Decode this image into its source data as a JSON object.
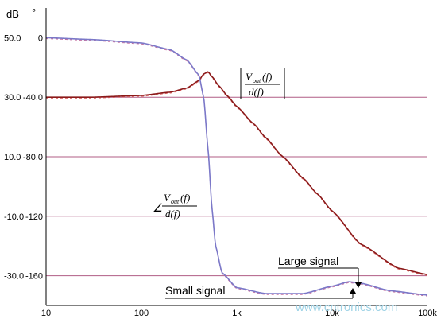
{
  "chart_data": {
    "type": "line",
    "units": {
      "left": "dB",
      "right": "°"
    },
    "x_axis": {
      "scale": "log",
      "ticks": [
        "10",
        "100",
        "1k",
        "10k",
        "100k"
      ],
      "range": [
        10,
        100000
      ]
    },
    "y_axis_db": {
      "ticks": [
        "50.0",
        "30.0",
        "10.0",
        "-10.0",
        "-30.0"
      ],
      "range": [
        -40,
        60
      ]
    },
    "y_axis_phase": {
      "ticks": [
        "0",
        "-40.0",
        "-80.0",
        "-120",
        "-160"
      ],
      "range": [
        -180,
        20
      ]
    },
    "grid": {
      "horizontal_db": [
        30,
        10,
        -10,
        -30
      ],
      "vertical": false
    },
    "series": [
      {
        "color": "#8b1a1a",
        "x": [
          10,
          30,
          100,
          200,
          300,
          400,
          450,
          500,
          550,
          650,
          800,
          1000,
          1500,
          2000,
          3000,
          5000,
          7000,
          10000,
          20000,
          50000,
          100000
        ],
        "y": [
          30,
          30,
          30.6,
          31.7,
          33.1,
          35.6,
          37.8,
          38.6,
          36.9,
          33.8,
          30.4,
          26.9,
          21.1,
          16.5,
          10.2,
          2.7,
          -2.5,
          -8.2,
          -19.4,
          -27.5,
          -29.6
        ]
      },
      {
        "color": "#7b78c8",
        "x": [
          10,
          30,
          100,
          200,
          300,
          400,
          450,
          500,
          550,
          600,
          700,
          1000,
          2000,
          5000,
          10000,
          15000,
          20000,
          40000,
          100000
        ],
        "y": [
          0,
          -1.2,
          -3.5,
          -8,
          -15,
          -25,
          -40,
          -75,
          -115,
          -140,
          -158,
          -168,
          -172,
          -172,
          -167,
          -164,
          -165,
          -170,
          -173
        ]
      }
    ],
    "annotations": [
      {
        "label": "Large signal"
      },
      {
        "label": "Small signal"
      }
    ]
  },
  "math_labels": {
    "magnitude": {
      "numerator": "V",
      "sub": "out",
      "num_arg": "(f)",
      "denominator": "d(f)"
    },
    "phase": {
      "angle": "∠",
      "numerator": "V",
      "sub": "out",
      "num_arg": "(f)",
      "denominator": "d(f)"
    }
  },
  "watermark": "www.cntronics.com",
  "colors": {
    "axis": "#000000",
    "grid": "#b05d85",
    "magnitude_curve": "#8b1a1a",
    "phase_curve": "#7b78c8",
    "watermark": "#9fd3e6"
  }
}
